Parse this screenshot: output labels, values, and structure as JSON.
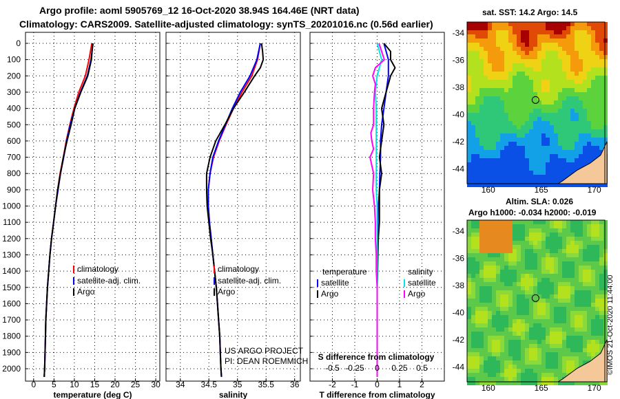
{
  "titles": {
    "line1": "Argo profile: aoml 5905769_12 16-Oct-2020 38.94S 164.46E (NRT data)",
    "line2": "Climatology: CARS2009. Satellite-adjusted climatology: synTS_20201016.nc (0.56d earlier)"
  },
  "colors": {
    "climatology": "#ff0000",
    "satellite": "#0000ff",
    "argo": "#000000",
    "argo_salinity_diff": "#ff00ff",
    "satellite_salinity_diff": "#00e5e5"
  },
  "credits": {
    "line1": "US ARGO PROJECT",
    "line2": "PI: DEAN ROEMMICH"
  },
  "maps": {
    "sst_title": "sat. SST: 14.2 Argo: 14.5",
    "sla_title1": "Altim. SLA: 0.026",
    "sla_title2": "Argo h1000: -0.034 h2000: -0.019",
    "watermark": "©IMOS 21-Oct-2020 11:44:00",
    "lon_ticks": [
      "160",
      "165",
      "170"
    ],
    "lat_ticks": [
      "-34",
      "-36",
      "-38",
      "-40",
      "-42",
      "-44"
    ],
    "float_lon": 164.46,
    "float_lat": -38.94
  },
  "chart_data": [
    {
      "type": "line",
      "panel": "temperature",
      "xlabel": "temperature (deg C)",
      "ylabel": "",
      "xlim": [
        -2,
        31
      ],
      "ylim": [
        2070,
        0
      ],
      "xticks": [
        "0",
        "5",
        "10",
        "15",
        "20",
        "25",
        "30"
      ],
      "yticks": [
        "0",
        "100",
        "200",
        "300",
        "400",
        "500",
        "600",
        "700",
        "800",
        "900",
        "1000",
        "1100",
        "1200",
        "1300",
        "1400",
        "1500",
        "1600",
        "1700",
        "1800",
        "1900",
        "2000"
      ],
      "grid": true,
      "legend": {
        "position": "lower-right",
        "entries": [
          "climatology",
          "satellite-adj. clim.",
          "Argo"
        ]
      },
      "series": [
        {
          "name": "climatology",
          "depth": [
            0,
            100,
            200,
            300,
            400,
            500,
            600,
            700,
            800,
            900,
            1000,
            1100,
            1200,
            1300,
            1400,
            1500,
            1600,
            1700,
            1800,
            1900,
            2000,
            2050
          ],
          "values": [
            14.3,
            13.6,
            12.7,
            11.1,
            9.9,
            8.9,
            8.0,
            7.3,
            6.5,
            5.9,
            5.4,
            4.9,
            4.4,
            4.0,
            3.7,
            3.4,
            3.2,
            3.0,
            2.9,
            2.8,
            2.7,
            2.6
          ]
        },
        {
          "name": "satellite-adj. clim.",
          "depth": [
            0,
            100,
            200,
            300,
            400,
            500,
            600,
            700,
            800,
            900,
            1000,
            1100,
            1200,
            1300,
            1400,
            1500,
            1600,
            1700,
            1800,
            1900,
            2000,
            2050
          ],
          "values": [
            14.6,
            14.1,
            13.2,
            11.5,
            10.1,
            9.0,
            8.1,
            7.4,
            6.6,
            6.0,
            5.4,
            4.9,
            4.4,
            4.0,
            3.7,
            3.4,
            3.2,
            3.0,
            2.9,
            2.8,
            2.7,
            2.6
          ]
        },
        {
          "name": "Argo",
          "depth": [
            0,
            100,
            200,
            300,
            400,
            500,
            600,
            700,
            800,
            900,
            1000,
            1100,
            1200,
            1300,
            1400,
            1500,
            1600,
            1700,
            1800,
            1900,
            2000,
            2050
          ],
          "values": [
            14.5,
            14.2,
            13.3,
            11.6,
            10.1,
            9.2,
            8.2,
            7.3,
            6.6,
            5.9,
            5.4,
            4.9,
            4.4,
            4.0,
            3.7,
            3.4,
            3.2,
            3.0,
            2.9,
            2.8,
            2.7,
            2.6
          ]
        }
      ]
    },
    {
      "type": "line",
      "panel": "salinity",
      "xlabel": "salinity",
      "xlim": [
        33.75,
        36.1
      ],
      "ylim": [
        2070,
        0
      ],
      "xticks": [
        "34",
        "34.5",
        "35",
        "35.5",
        "36"
      ],
      "grid": true,
      "legend": {
        "position": "lower-right",
        "entries": [
          "climatology",
          "satellite-adj. clim.",
          "Argo"
        ]
      },
      "series": [
        {
          "name": "climatology",
          "depth": [
            0,
            100,
            200,
            300,
            400,
            500,
            600,
            700,
            800,
            900,
            1000,
            1100,
            1200,
            1300,
            1400,
            1500,
            1600,
            1700,
            1800,
            1900,
            2000,
            2050
          ],
          "values": [
            35.4,
            35.35,
            35.25,
            35.08,
            34.93,
            34.8,
            34.68,
            34.58,
            34.52,
            34.49,
            34.49,
            34.51,
            34.54,
            34.57,
            34.6,
            34.63,
            34.65,
            34.67,
            34.69,
            34.7,
            34.71,
            34.72
          ]
        },
        {
          "name": "satellite-adj. clim.",
          "depth": [
            0,
            100,
            200,
            300,
            400,
            500,
            600,
            700,
            800,
            900,
            1000,
            1100,
            1200,
            1300,
            1400,
            1500,
            1600,
            1700,
            1800,
            1900,
            2000,
            2050
          ],
          "values": [
            35.4,
            35.34,
            35.22,
            35.05,
            34.91,
            34.79,
            34.67,
            34.57,
            34.52,
            34.49,
            34.49,
            34.51,
            34.54,
            34.57,
            34.6,
            34.63,
            34.65,
            34.67,
            34.69,
            34.7,
            34.71,
            34.72
          ]
        },
        {
          "name": "Argo",
          "depth": [
            0,
            50,
            100,
            150,
            200,
            300,
            400,
            500,
            600,
            700,
            800,
            900,
            1000,
            1100,
            1200,
            1300,
            1400,
            1500,
            1600,
            1700,
            1800,
            1900,
            2000,
            2050
          ],
          "values": [
            35.42,
            35.44,
            35.45,
            35.4,
            35.3,
            35.12,
            34.93,
            34.78,
            34.62,
            34.52,
            34.46,
            34.46,
            34.47,
            34.5,
            34.53,
            34.57,
            34.6,
            34.63,
            34.65,
            34.67,
            34.69,
            34.7,
            34.71,
            34.72
          ]
        }
      ]
    },
    {
      "type": "line",
      "panel": "difference",
      "xlabel": "T difference from climatology",
      "xlabel2": "S difference from climatology",
      "xlim": [
        -3,
        3
      ],
      "ylim": [
        2070,
        0
      ],
      "xticks": [
        "-2",
        "-1",
        "0",
        "1",
        "2"
      ],
      "xticks2": [
        "-0.5",
        "-0.25",
        "0",
        "0.25",
        "0.5"
      ],
      "grid": true,
      "legend": {
        "position": "lower-center",
        "group1": "temperature",
        "group2": "salinity",
        "entries": [
          "satellite",
          "Argo",
          "satellite",
          "Argo"
        ]
      },
      "series": [
        {
          "name": "temperature satellite",
          "depth": [
            0,
            100,
            200,
            300,
            400,
            500,
            600,
            700,
            800,
            900,
            1000,
            1100,
            1200,
            1300,
            1400,
            1500,
            1600,
            1700,
            1800,
            1900,
            2000,
            2050
          ],
          "values": [
            0.3,
            0.5,
            0.5,
            0.4,
            0.3,
            0.2,
            0.15,
            0.15,
            0.12,
            0.1,
            0.05,
            0.03,
            0.02,
            0.01,
            0.0,
            0.0,
            0.0,
            0.0,
            0.0,
            0.0,
            0.0,
            0.0
          ]
        },
        {
          "name": "temperature Argo",
          "depth": [
            0,
            50,
            100,
            150,
            200,
            300,
            400,
            500,
            600,
            700,
            800,
            900,
            1000,
            1100,
            1200,
            1300,
            1400,
            1500,
            1600,
            1700,
            1800,
            1900,
            2000,
            2050
          ],
          "values": [
            0.3,
            0.6,
            0.6,
            0.8,
            0.6,
            0.4,
            0.2,
            0.3,
            0.2,
            0.1,
            0.2,
            0.1,
            0.1,
            0.1,
            0.05,
            0.03,
            0.02,
            0.0,
            0.0,
            0.0,
            0.0,
            0.0,
            0.0,
            0.0
          ]
        },
        {
          "name": "salinity satellite",
          "depth": [
            0,
            100,
            200,
            300,
            400,
            500,
            600,
            700,
            800,
            900,
            1000,
            1100,
            1200,
            1300,
            1400,
            1500,
            1600,
            1700,
            1800,
            1900,
            2000,
            2050
          ],
          "values": [
            0.0,
            0.05,
            0.0,
            -0.02,
            -0.01,
            -0.01,
            -0.01,
            -0.01,
            -0.01,
            -0.01,
            0.0,
            0.0,
            0.0,
            0.0,
            0.0,
            0.0,
            0.0,
            0.0,
            0.0,
            0.0,
            0.0,
            0.0
          ]
        },
        {
          "name": "salinity Argo",
          "depth": [
            0,
            50,
            100,
            150,
            200,
            250,
            300,
            400,
            500,
            550,
            600,
            650,
            700,
            800,
            900,
            1000,
            1100,
            1200,
            1300,
            1400,
            1500,
            1600,
            1700,
            1800,
            1900,
            2000,
            2050
          ],
          "values": [
            0.02,
            0.05,
            0.08,
            -0.02,
            -0.05,
            -0.02,
            -0.03,
            -0.04,
            -0.04,
            -0.07,
            -0.06,
            -0.04,
            -0.08,
            -0.04,
            -0.05,
            -0.03,
            -0.02,
            -0.02,
            -0.01,
            -0.01,
            0.0,
            0.0,
            0.0,
            0.0,
            0.0,
            0.0,
            0.0
          ]
        }
      ]
    }
  ]
}
